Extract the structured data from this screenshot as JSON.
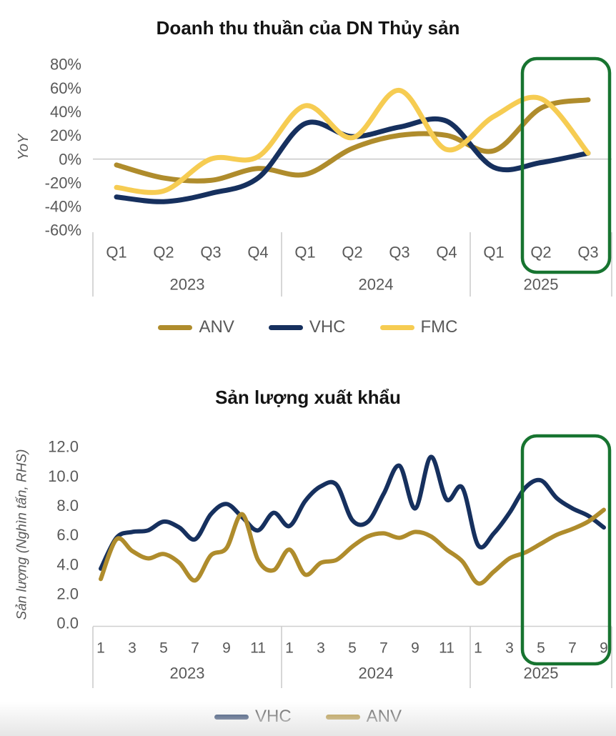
{
  "page": {
    "background": "#ffffff",
    "bottom_shade": "#e6e6e6"
  },
  "chart_data": [
    {
      "type": "line",
      "title": "Doanh thu thuần của DN Thủy sản",
      "y_axis": {
        "title": "YoY",
        "min": -60,
        "max": 80,
        "step": 20,
        "format": "percent"
      },
      "x_groups": [
        {
          "label": "2023",
          "n": 4
        },
        {
          "label": "2024",
          "n": 4
        },
        {
          "label": "2025",
          "n": 3
        }
      ],
      "x_tick_labels": [
        "Q1",
        "Q2",
        "Q3",
        "Q4",
        "Q1",
        "Q2",
        "Q3",
        "Q4",
        "Q1",
        "Q2",
        "Q3"
      ],
      "x_tick_indices": [
        0,
        1,
        2,
        3,
        4,
        5,
        6,
        7,
        8,
        9,
        10
      ],
      "series": [
        {
          "name": "ANV",
          "color": "#af8c2c",
          "values": [
            -5,
            -16,
            -18,
            -8,
            -13,
            9,
            20,
            20,
            7,
            43,
            50
          ]
        },
        {
          "name": "VHC",
          "color": "#16305e",
          "values": [
            -32,
            -36,
            -29,
            -16,
            30,
            19,
            27,
            32,
            -7,
            -3,
            5
          ]
        },
        {
          "name": "FMC",
          "color": "#f6cc52",
          "values": [
            -24,
            -27,
            0,
            2,
            45,
            18,
            58,
            8,
            36,
            51,
            5
          ]
        }
      ],
      "highlight": {
        "color": "#177430",
        "from_index": 9,
        "to_index": 10
      }
    },
    {
      "type": "line",
      "title": "Sản lượng xuất khẩu",
      "y_axis": {
        "title": "Sản lượng (Nghìn tấn, RHS)",
        "min": 0,
        "max": 12,
        "step": 2,
        "format": "one_decimal"
      },
      "x_groups": [
        {
          "label": "2023",
          "n": 12
        },
        {
          "label": "2024",
          "n": 12
        },
        {
          "label": "2025",
          "n": 9
        }
      ],
      "x_tick_labels": [
        "1",
        "3",
        "5",
        "7",
        "9",
        "11",
        "1",
        "3",
        "5",
        "7",
        "9",
        "11",
        "1",
        "3",
        "5",
        "7",
        "9"
      ],
      "x_tick_indices": [
        0,
        2,
        4,
        6,
        8,
        10,
        12,
        14,
        16,
        18,
        20,
        22,
        24,
        26,
        28,
        30,
        32
      ],
      "series": [
        {
          "name": "VHC",
          "color": "#16305e",
          "values": [
            3.7,
            5.8,
            6.2,
            6.3,
            6.9,
            6.5,
            5.7,
            7.4,
            8.1,
            7.2,
            6.3,
            7.5,
            6.6,
            8.3,
            9.3,
            9.4,
            7.0,
            6.9,
            8.8,
            10.7,
            7.8,
            11.3,
            8.4,
            9.2,
            5.3,
            6.1,
            7.5,
            9.2,
            9.7,
            8.5,
            7.8,
            7.3,
            6.5
          ]
        },
        {
          "name": "ANV",
          "color": "#af8c2c",
          "values": [
            3.0,
            5.7,
            4.9,
            4.4,
            4.7,
            4.1,
            2.9,
            4.6,
            5.1,
            7.4,
            4.3,
            3.6,
            5.0,
            3.3,
            4.1,
            4.3,
            5.2,
            5.9,
            6.1,
            5.8,
            6.2,
            5.9,
            5.0,
            4.2,
            2.7,
            3.5,
            4.4,
            4.8,
            5.4,
            6.0,
            6.4,
            6.9,
            7.7
          ]
        }
      ],
      "highlight": {
        "color": "#177430",
        "from_index": 28,
        "to_index": 32
      }
    }
  ]
}
